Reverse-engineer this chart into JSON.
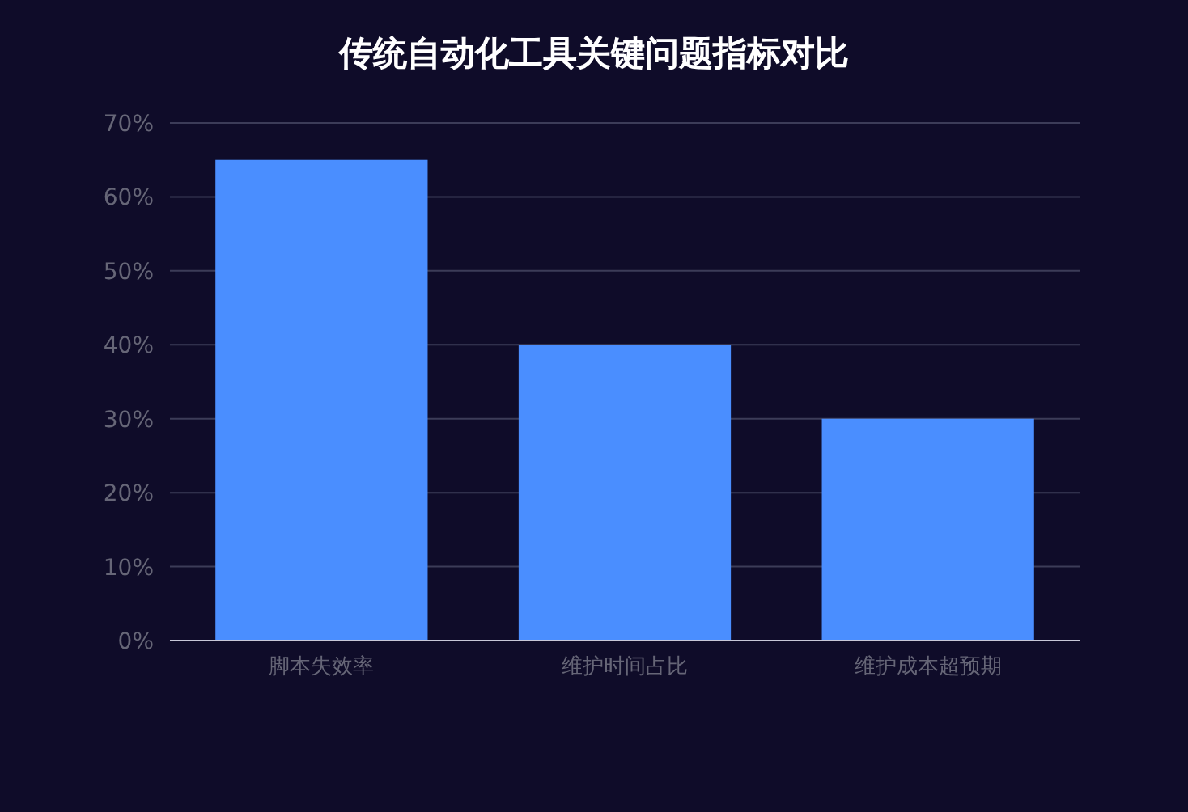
{
  "chart_data": {
    "type": "bar",
    "title": "传统自动化工具关键问题指标对比",
    "categories": [
      "脚本失效率",
      "维护时间占比",
      "维护成本超预期"
    ],
    "values": [
      65,
      40,
      30
    ],
    "color": "#4a8eff",
    "ylim": [
      0,
      70
    ],
    "yticks": [
      {
        "value": 0,
        "label": "0%"
      },
      {
        "value": 10,
        "label": "10%"
      },
      {
        "value": 20,
        "label": "20%"
      },
      {
        "value": 30,
        "label": "30%"
      },
      {
        "value": 40,
        "label": "40%"
      },
      {
        "value": 50,
        "label": "50%"
      },
      {
        "value": 60,
        "label": "60%"
      },
      {
        "value": 70,
        "label": "70%"
      }
    ],
    "grid": "y"
  }
}
